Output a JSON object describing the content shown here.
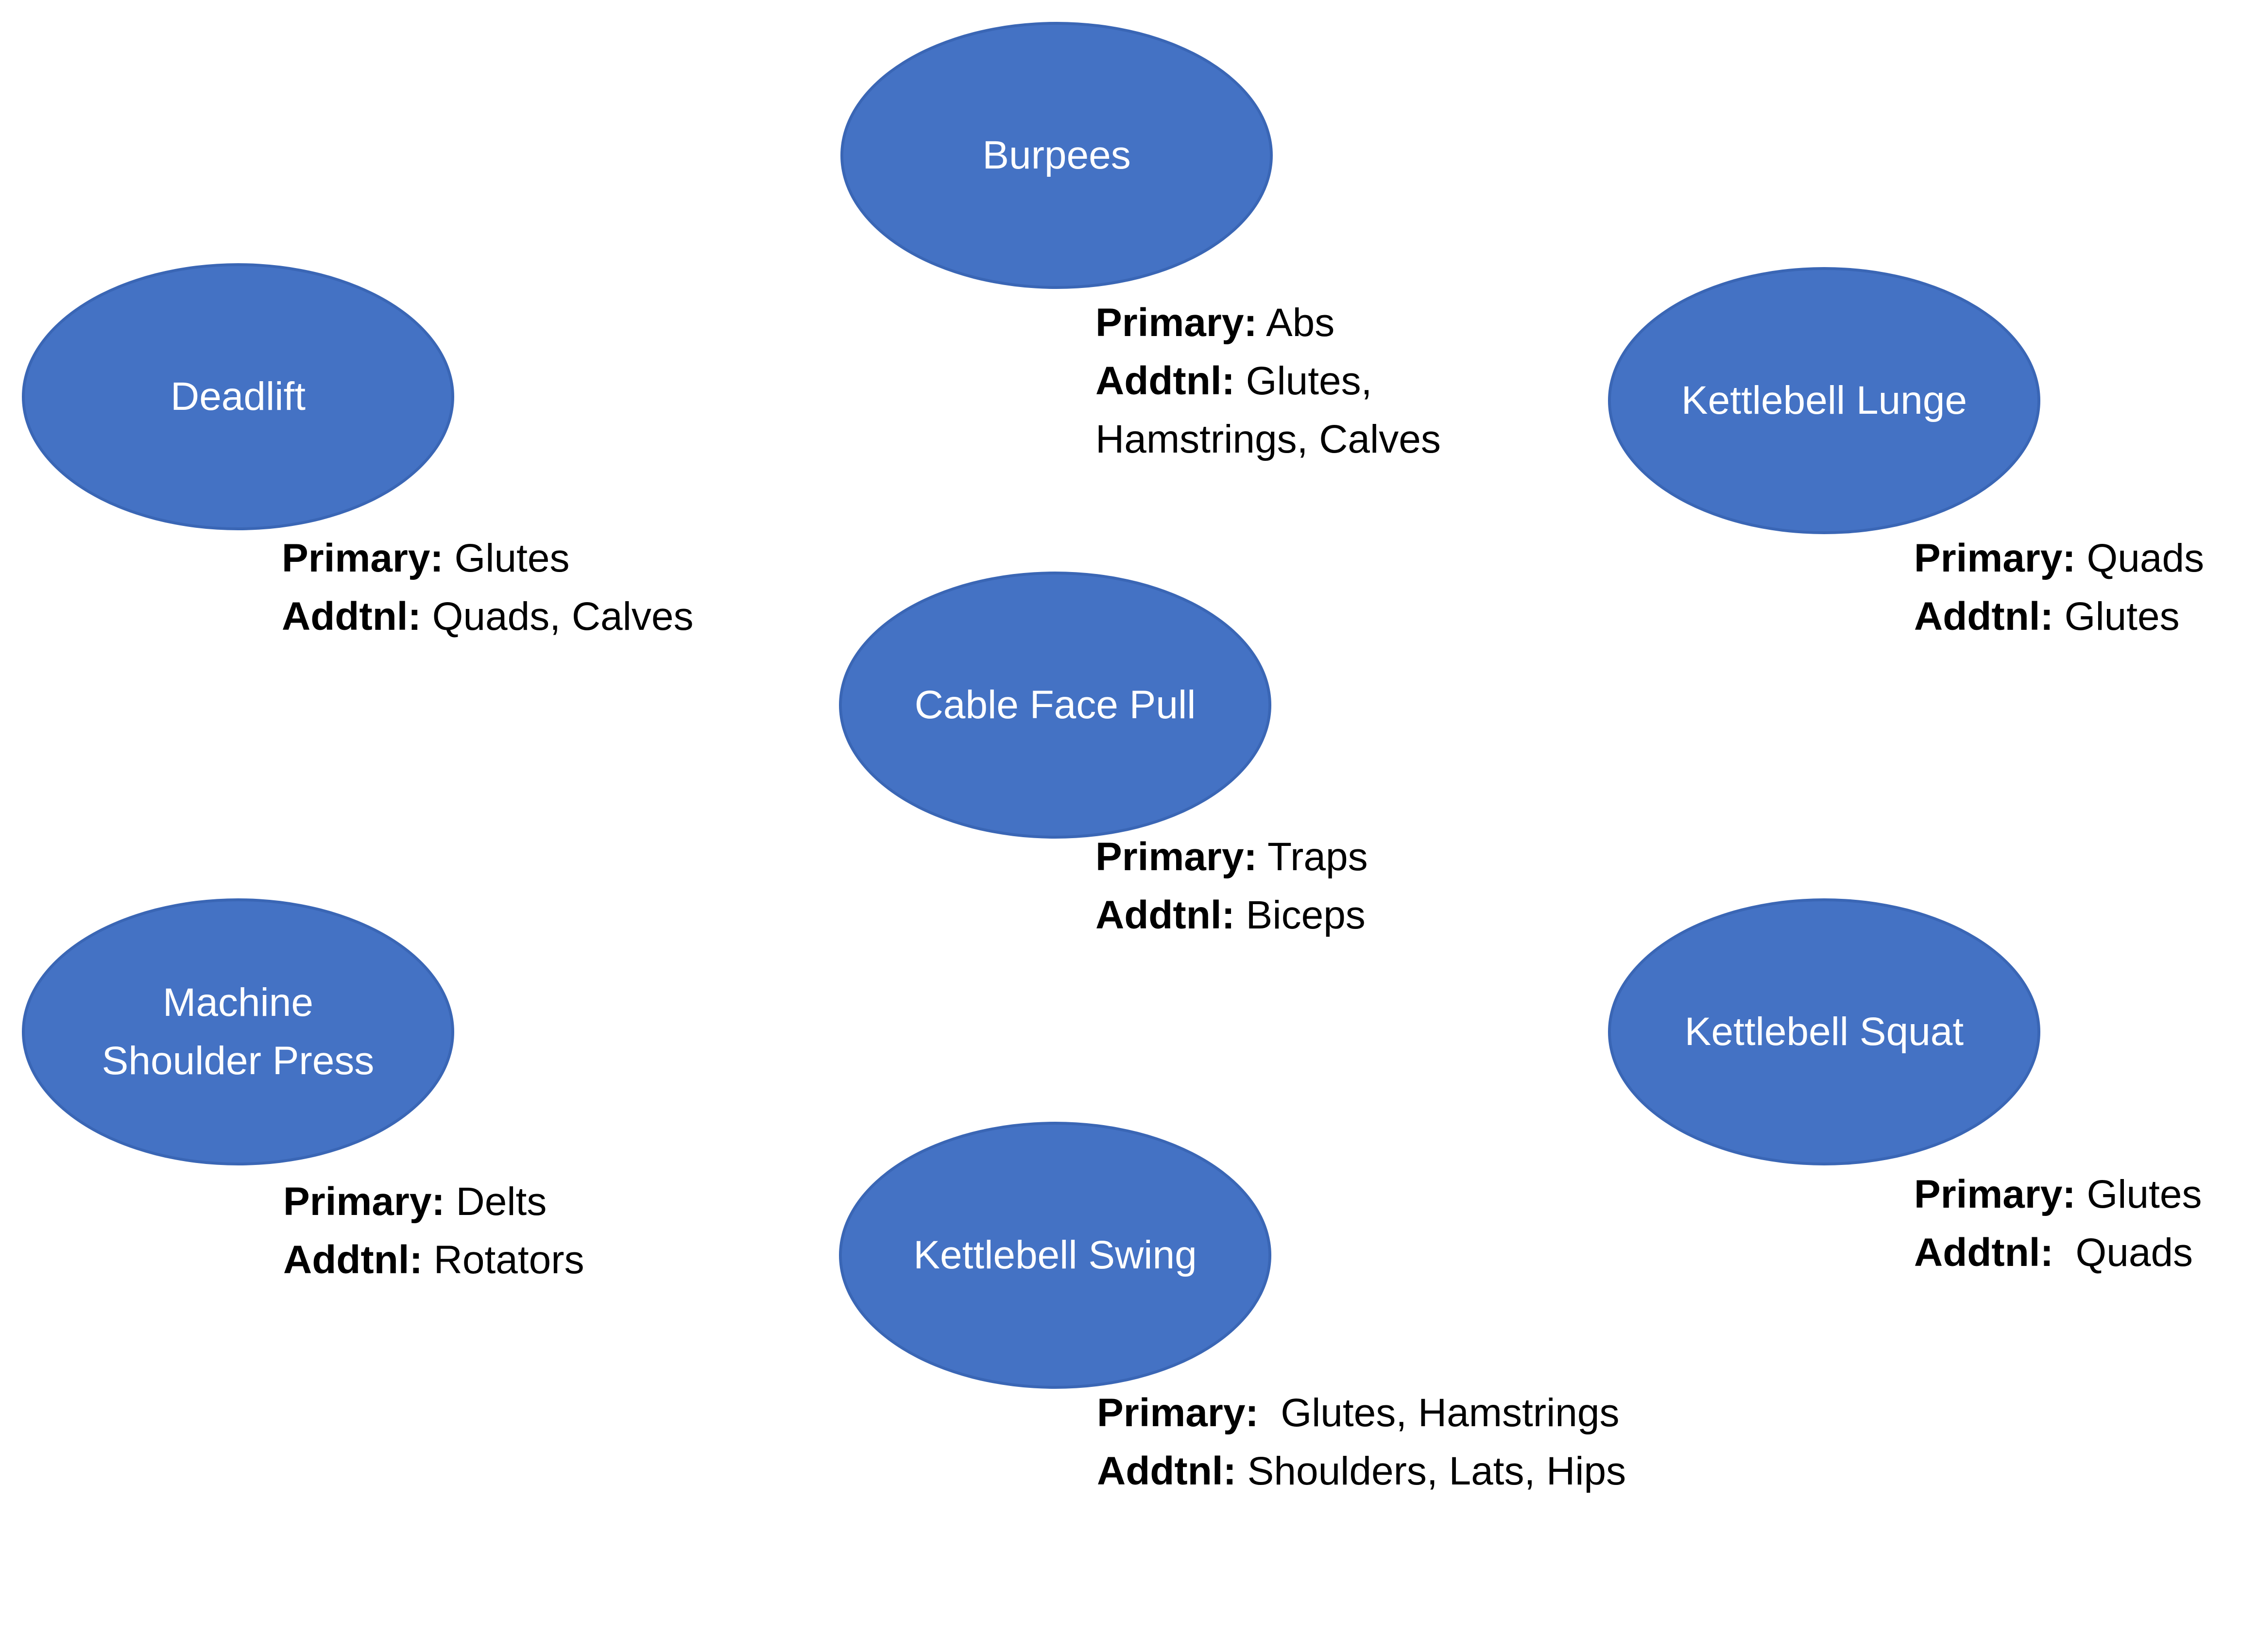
{
  "colors": {
    "node_fill": "#4472C4",
    "node_text": "#FFFFFF",
    "caption_text": "#000000"
  },
  "nodes": [
    {
      "id": "burpees",
      "label": "Burpees",
      "primary_label": "Primary:",
      "primary_value": " Abs",
      "addtnl_label": "Addtnl:",
      "addtnl_value": " Glutes,",
      "addtnl_value_2": "Hamstrings, Calves"
    },
    {
      "id": "deadlift",
      "label": "Deadlift",
      "primary_label": "Primary:",
      "primary_value": " Glutes",
      "addtnl_label": "Addtnl:",
      "addtnl_value": " Quads, Calves"
    },
    {
      "id": "kettlebell-lunge",
      "label": "Kettlebell Lunge",
      "primary_label": "Primary:",
      "primary_value": " Quads",
      "addtnl_label": "Addtnl:",
      "addtnl_value": " Glutes"
    },
    {
      "id": "cable-face-pull",
      "label": "Cable Face Pull",
      "primary_label": "Primary:",
      "primary_value": " Traps",
      "addtnl_label": "Addtnl:",
      "addtnl_value": " Biceps"
    },
    {
      "id": "machine-shoulder-press",
      "label": "Machine\nShoulder Press",
      "primary_label": "Primary:",
      "primary_value": " Delts",
      "addtnl_label": "Addtnl:",
      "addtnl_value": " Rotators"
    },
    {
      "id": "kettlebell-squat",
      "label": "Kettlebell Squat",
      "primary_label": "Primary:",
      "primary_value": " Glutes",
      "addtnl_label": "Addtnl:",
      "addtnl_value": "  Quads"
    },
    {
      "id": "kettlebell-swing",
      "label": "Kettlebell Swing",
      "primary_label": "Primary:",
      "primary_value": "  Glutes, Hamstrings",
      "addtnl_label": "Addtnl:",
      "addtnl_value": " Shoulders, Lats, Hips"
    }
  ]
}
